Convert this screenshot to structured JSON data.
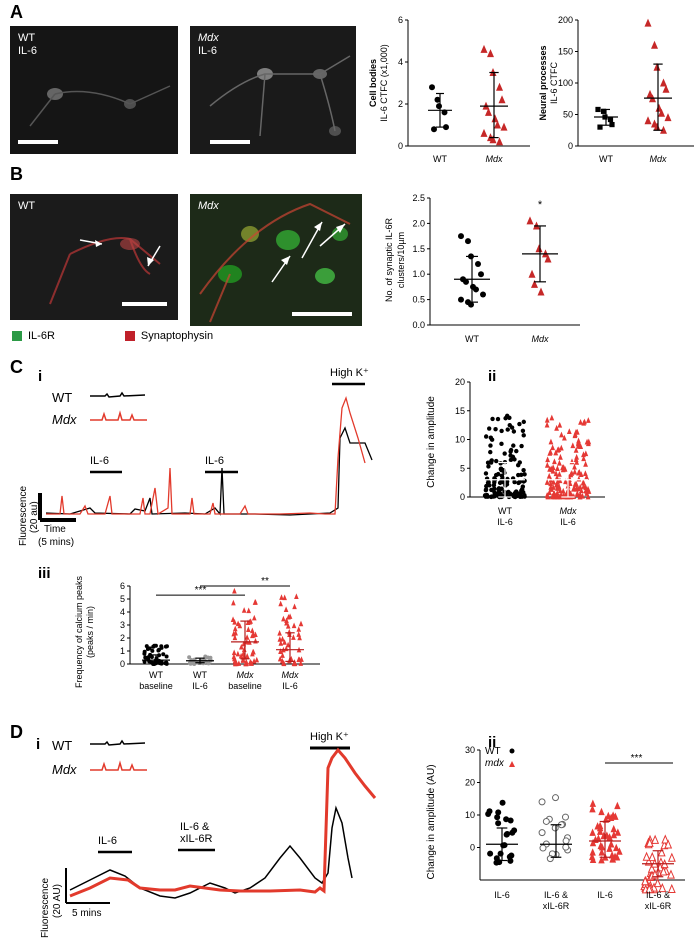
{
  "panelA": {
    "letter": "A",
    "micro_wt": {
      "line1": "WT",
      "line2": "IL-6"
    },
    "micro_mdx": {
      "line1": "Mdx",
      "line2": "IL-6"
    },
    "cell_bodies": {
      "ylabel1": "Cell bodies",
      "ylabel2": "IL-6 CTFC (x1,000)",
      "yticks": [
        "0",
        "2",
        "4",
        "6"
      ],
      "ylim": [
        0,
        6
      ],
      "categories": [
        "WT",
        "Mdx"
      ],
      "wt_values": [
        2.8,
        2.2,
        1.9,
        1.6,
        0.9,
        0.8
      ],
      "mdx_values": [
        4.6,
        4.4,
        3.5,
        2.8,
        2.2,
        1.9,
        1.6,
        1.3,
        1.0,
        0.9,
        0.6,
        0.4,
        0.3,
        0.2
      ],
      "wt_mean": 1.7,
      "wt_sd": [
        0.9,
        2.5
      ],
      "mdx_mean": 1.9,
      "mdx_sd": [
        0.4,
        3.5
      ]
    },
    "neural_processes": {
      "ylabel1": "Neural processes",
      "ylabel2": "IL-6 CTFC",
      "yticks": [
        "0",
        "50",
        "100",
        "150",
        "200"
      ],
      "ylim": [
        0,
        200
      ],
      "categories": [
        "WT",
        "Mdx"
      ],
      "wt_values": [
        58,
        55,
        46,
        42,
        34,
        30
      ],
      "mdx_values": [
        195,
        160,
        125,
        100,
        90,
        82,
        75,
        60,
        52,
        45,
        40,
        35,
        30,
        25
      ],
      "wt_mean": 46,
      "wt_sd": [
        33,
        58
      ],
      "mdx_mean": 76,
      "mdx_sd": [
        25,
        130
      ]
    }
  },
  "panelB": {
    "letter": "B",
    "micro_wt": {
      "line1": "WT"
    },
    "micro_mdx": {
      "line1": "Mdx"
    },
    "legend_green": "IL-6R",
    "legend_red": "Synaptophysin",
    "clusters": {
      "ylabel1": "No. of synaptic IL-6R",
      "ylabel2": "clusters/10µm",
      "yticks": [
        "0.0",
        "0.5",
        "1.0",
        "1.5",
        "2.0",
        "2.5"
      ],
      "ylim": [
        0,
        2.5
      ],
      "categories": [
        "WT",
        "Mdx"
      ],
      "significance": "*",
      "wt_values": [
        1.75,
        1.65,
        1.35,
        1.2,
        1.0,
        0.9,
        0.85,
        0.75,
        0.7,
        0.6,
        0.5,
        0.45,
        0.4
      ],
      "mdx_values": [
        2.05,
        1.95,
        1.5,
        1.4,
        1.3,
        1.0,
        0.8,
        0.65
      ],
      "wt_mean": 0.9,
      "wt_sd": [
        0.45,
        1.35
      ],
      "mdx_mean": 1.4,
      "mdx_sd": [
        0.85,
        1.95
      ]
    }
  },
  "panelC": {
    "letter": "C",
    "i": {
      "label": "i",
      "legend_wt": "WT",
      "legend_mdx": "Mdx",
      "il6_label_1": "IL-6",
      "il6_label_2": "IL-6",
      "highk_label": "High K⁺",
      "fluor_label1": "Fluorescence",
      "fluor_label2": "(20 au)",
      "time_label1": "Time",
      "time_label2": "(5 mins)"
    },
    "ii": {
      "label": "ii",
      "ylabel": "Change in amplitude",
      "yticks": [
        "0",
        "5",
        "10",
        "15",
        "20"
      ],
      "ylim": [
        0,
        20
      ],
      "cat1_line1": "WT",
      "cat1_line2": "IL-6",
      "cat2_line1": "Mdx",
      "cat2_line2": "IL-6",
      "wt_mean": 3,
      "wt_sd": [
        0,
        6
      ],
      "mdx_mean": 3,
      "mdx_sd": [
        0,
        6
      ]
    },
    "iii": {
      "label": "iii",
      "ylabel1": "Frequency of calcium peaks",
      "ylabel2": "(peaks / min)",
      "yticks": [
        "0",
        "1",
        "2",
        "3",
        "4",
        "5",
        "6"
      ],
      "ylim": [
        0,
        6
      ],
      "categories": [
        {
          "line1": "WT",
          "line2": "baseline"
        },
        {
          "line1": "WT",
          "line2": "IL-6"
        },
        {
          "line1": "Mdx",
          "line2": "baseline"
        },
        {
          "line1": "Mdx",
          "line2": "IL-6"
        }
      ],
      "sig1": "***",
      "sig2": "**",
      "means": [
        0.3,
        0.25,
        1.7,
        1.1
      ],
      "sds": [
        [
          0,
          0.7
        ],
        [
          0.1,
          0.45
        ],
        [
          0.4,
          3.3
        ],
        [
          0.2,
          2.4
        ]
      ]
    }
  },
  "panelD": {
    "letter": "D",
    "i": {
      "label": "i",
      "legend_wt": "WT",
      "legend_mdx": "Mdx",
      "il6_label": "IL-6",
      "il6x_label1": "IL-6 &",
      "il6x_label2": "xIL-6R",
      "highk_label": "High K⁺",
      "fluor_label1": "Fluorescence",
      "fluor_label2": "(20 AU)",
      "time_label": "5 mins"
    },
    "ii": {
      "label": "ii",
      "ylabel": "Change in amplitude (AU)",
      "yticks": [
        "0",
        "10",
        "20",
        "30"
      ],
      "ylim": [
        -10,
        30
      ],
      "legend_wt": "WT",
      "legend_mdx": "mdx",
      "sig": "***",
      "categories": [
        {
          "line1": "IL-6",
          "line2": ""
        },
        {
          "line1": "IL-6 &",
          "line2": "xIL-6R"
        },
        {
          "line1": "IL-6",
          "line2": ""
        },
        {
          "line1": "IL-6 &",
          "line2": "xIL-6R"
        }
      ],
      "means": [
        1,
        1,
        2,
        -5
      ],
      "sds": [
        [
          -4,
          6
        ],
        [
          -3,
          7
        ],
        [
          -3,
          8
        ],
        [
          -9,
          -1
        ]
      ]
    }
  }
}
